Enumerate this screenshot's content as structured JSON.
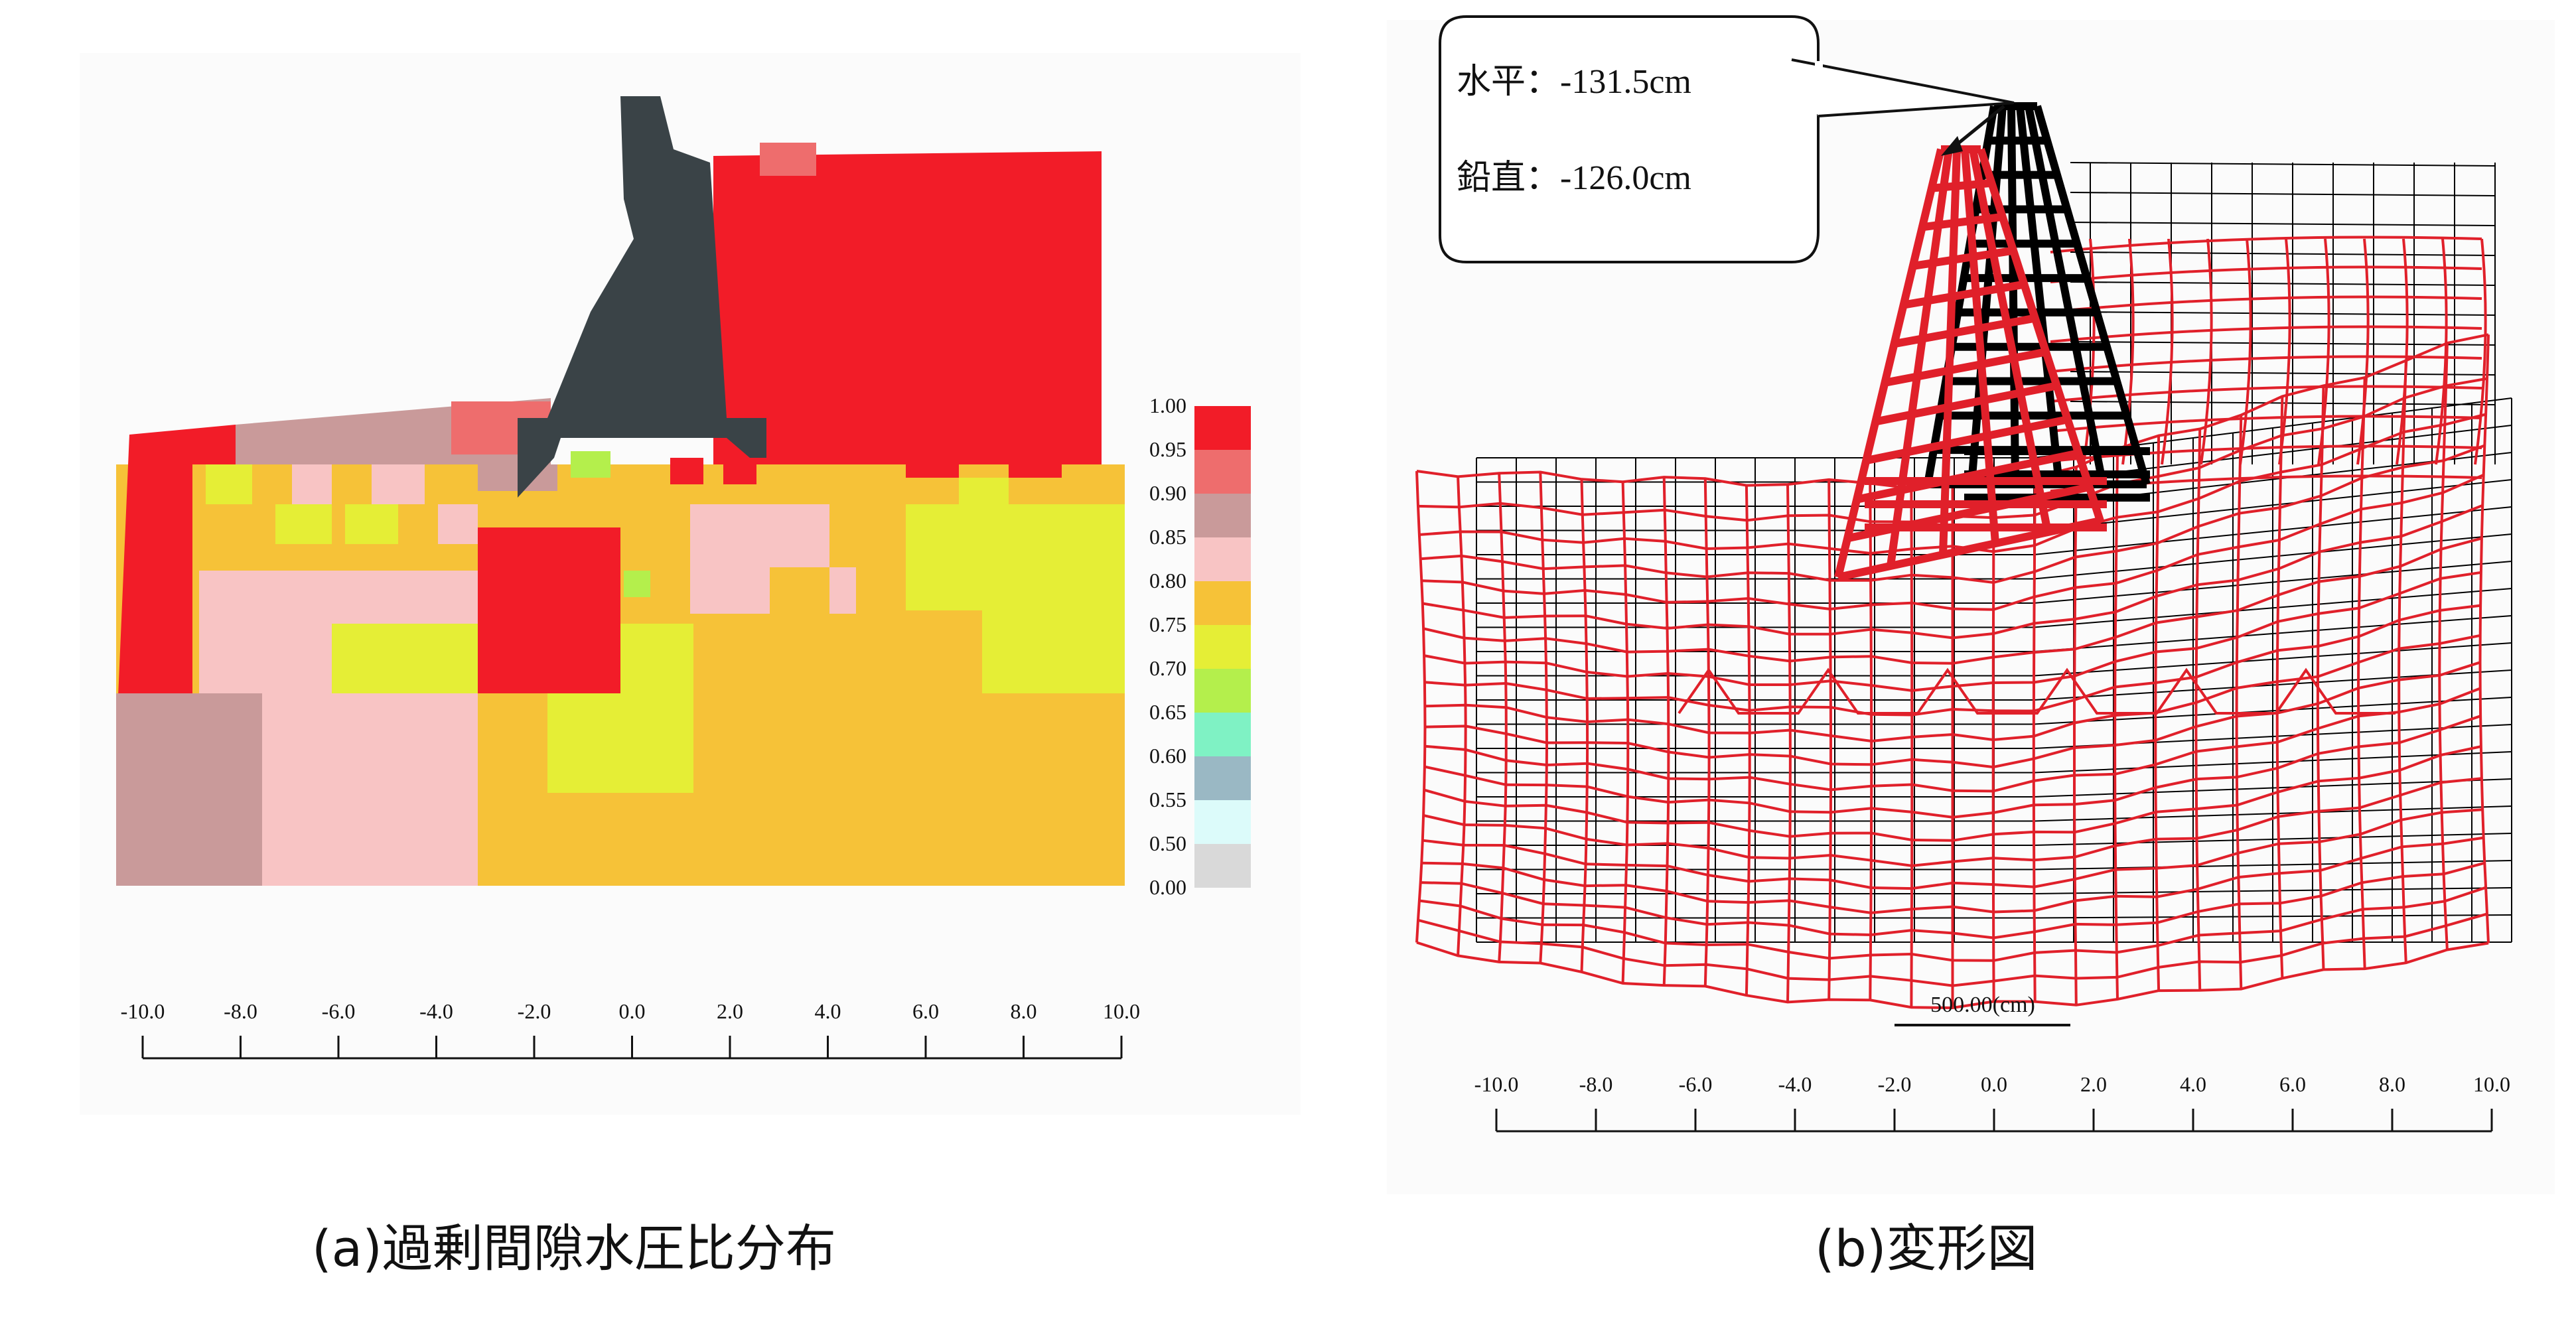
{
  "panel_a": {
    "caption": "(a)過剰間隙水圧比分布",
    "legend": {
      "labels": [
        "1.00",
        "0.95",
        "0.90",
        "0.85",
        "0.80",
        "0.75",
        "0.70",
        "0.65",
        "0.60",
        "0.55",
        "0.50",
        "0.00"
      ],
      "colors": [
        "#f21c28",
        "#ee6d6d",
        "#c99a9a",
        "#f8c4c4",
        "#f6c238",
        "#e5ee36",
        "#b4ef4c",
        "#7ff2c4",
        "#9ab8c4",
        "#dcfbfa",
        "#d9d9d9"
      ]
    },
    "axis_ticks": [
      "-10.0",
      "-8.0",
      "-6.0",
      "-4.0",
      "-2.0",
      "0.0",
      "2.0",
      "4.0",
      "6.0",
      "8.0",
      "10.0"
    ]
  },
  "panel_b": {
    "caption": "(b)変形図",
    "callout": {
      "horizontal": "水平：-131.5cm",
      "vertical": "鉛直：-126.0cm"
    },
    "scale_bar_label": "500.00(cm)",
    "axis_ticks": [
      "-10.0",
      "-8.0",
      "-6.0",
      "-4.0",
      "-2.0",
      "0.0",
      "2.0",
      "4.0",
      "6.0",
      "8.0",
      "10.0"
    ],
    "mesh_colors": {
      "original": "#000000",
      "deformed": "#e0202a"
    }
  }
}
